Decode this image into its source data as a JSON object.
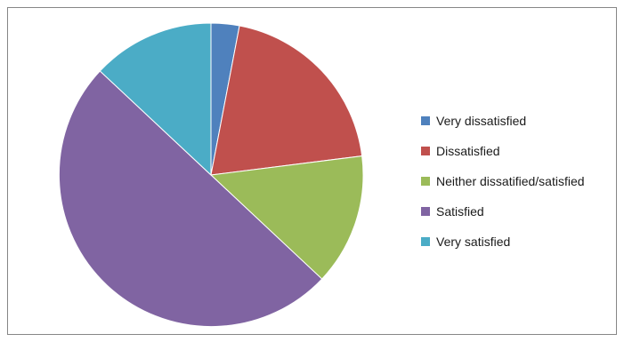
{
  "chart_data": {
    "type": "pie",
    "title": "",
    "legend_position": "right",
    "start_angle_deg": 0,
    "direction": "clockwise",
    "slices": [
      {
        "label": "Very dissatisfied",
        "value": 3,
        "color": "#4F81BD"
      },
      {
        "label": "Dissatisfied",
        "value": 20,
        "color": "#C0504D"
      },
      {
        "label": "Neither dissatified/satisfied",
        "value": 14,
        "color": "#9BBB59"
      },
      {
        "label": "Satisfied",
        "value": 50,
        "color": "#8064A2"
      },
      {
        "label": "Very satisfied",
        "value": 13,
        "color": "#4BACC6"
      }
    ]
  }
}
